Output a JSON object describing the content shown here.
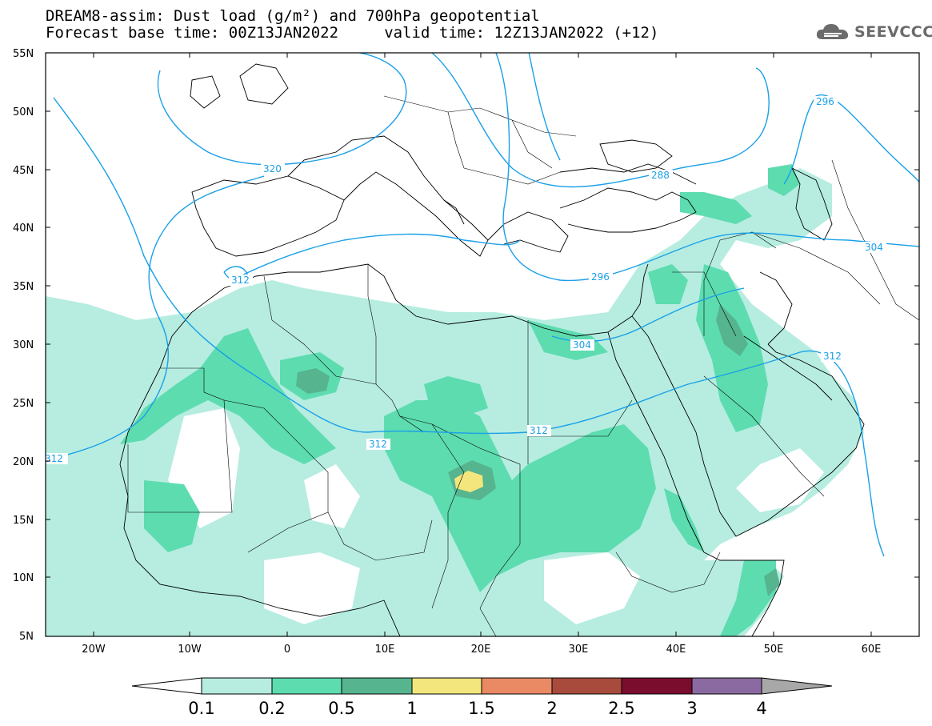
{
  "header": {
    "line1": "DREAM8-assim: Dust load (g/m²) and 700hPa geopotential",
    "line2": "Forecast base time: 00Z13JAN2022     valid time: 12Z13JAN2022 (+12)"
  },
  "logo": {
    "text": "SEEVCCC",
    "icon": "cloud-icon"
  },
  "map": {
    "lat_labels": [
      "55N",
      "50N",
      "45N",
      "40N",
      "35N",
      "30N",
      "25N",
      "20N",
      "15N",
      "10N",
      "5N"
    ],
    "lon_labels": [
      "20W",
      "10W",
      "0",
      "10E",
      "20E",
      "30E",
      "40E",
      "50E",
      "60E"
    ],
    "contour_labels": [
      "320",
      "288",
      "296",
      "296",
      "304",
      "304",
      "312",
      "312",
      "312",
      "312",
      "312"
    ]
  },
  "legend": {
    "levels": [
      "0.1",
      "0.2",
      "0.5",
      "1",
      "1.5",
      "2",
      "2.5",
      "3",
      "4"
    ],
    "colors": [
      "#ffffff",
      "#b6ede0",
      "#5ddcb0",
      "#56b48e",
      "#f2e67c",
      "#e98a64",
      "#a84a3c",
      "#7a0d2e",
      "#8a6aa0",
      "#a8a8a8"
    ]
  }
}
